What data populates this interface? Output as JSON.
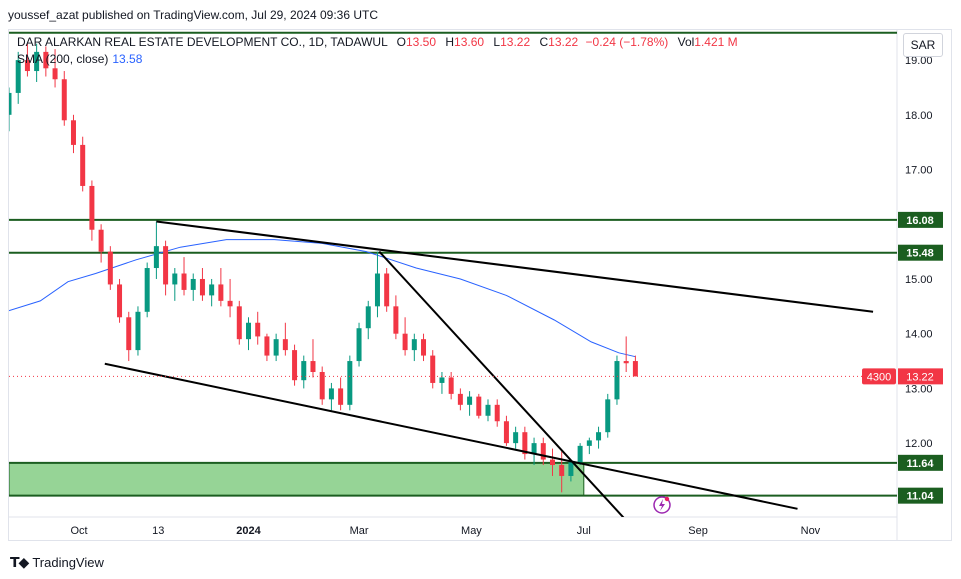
{
  "header": {
    "text": "youssef_azat published on TradingView.com, Jul 29, 2024 09:36 UTC"
  },
  "legend": {
    "symbol": "DAR ALARKAN REAL ESTATE DEVELOPMENT CO., 1D, TADAWUL",
    "o_label": "O",
    "o": "13.50",
    "h_label": "H",
    "h": "13.60",
    "l_label": "L",
    "l": "13.22",
    "c_label": "C",
    "c": "13.22",
    "change": "−0.24 (−1.78%)",
    "vol_label": "Vol",
    "vol": "1.421 M",
    "sma_label": "SMA (200, close)",
    "sma_value": "13.58"
  },
  "currency": "SAR",
  "footer": {
    "brand": "TradingView"
  },
  "colors": {
    "up": "#089981",
    "down": "#f23645",
    "sma": "#2962ff",
    "level": "#1b5e20",
    "zone": "#8bcf8b"
  },
  "chart_data": {
    "type": "candlestick",
    "y_ticks": [
      "19.00",
      "18.00",
      "17.00",
      "15.00",
      "14.00",
      "13.00",
      "12.00"
    ],
    "ylim": [
      10.65,
      19.55
    ],
    "x_ticks": [
      "Oct",
      "13",
      "2024",
      "Mar",
      "May",
      "Jul",
      "Sep",
      "Nov"
    ],
    "x_tick_dates": [
      "2023-10-01",
      "2023-11-13",
      "2024-01-01",
      "2024-03-01",
      "2024-05-01",
      "2024-07-01",
      "2024-09-01",
      "2024-11-01"
    ],
    "xlim": [
      "2023-08-24",
      "2024-12-18"
    ],
    "levels": [
      {
        "price": 16.08,
        "label": "16.08"
      },
      {
        "price": 15.48,
        "label": "15.48"
      },
      {
        "price": 11.64,
        "label": "11.64"
      },
      {
        "price": 11.04,
        "label": "11.04"
      }
    ],
    "top_level": {
      "price": 19.5,
      "label": ""
    },
    "zone": {
      "from": 11.04,
      "to": 11.64,
      "start": "2023-08-24",
      "end": "2024-07-01"
    },
    "last_price": {
      "value": 13.22,
      "label": "13.22",
      "countdown": "4300"
    },
    "sma": {
      "name": "SMA (200, close)",
      "points": [
        [
          "2023-08-24",
          14.42
        ],
        [
          "2023-09-10",
          14.6
        ],
        [
          "2023-09-25",
          14.95
        ],
        [
          "2023-10-10",
          15.1
        ],
        [
          "2023-11-01",
          15.35
        ],
        [
          "2023-11-25",
          15.58
        ],
        [
          "2023-12-20",
          15.72
        ],
        [
          "2024-01-15",
          15.72
        ],
        [
          "2024-02-10",
          15.65
        ],
        [
          "2024-03-05",
          15.5
        ],
        [
          "2024-04-01",
          15.2
        ],
        [
          "2024-04-25",
          15.0
        ],
        [
          "2024-05-20",
          14.7
        ],
        [
          "2024-06-15",
          14.25
        ],
        [
          "2024-07-05",
          13.85
        ],
        [
          "2024-07-20",
          13.65
        ],
        [
          "2024-07-29",
          13.58
        ]
      ]
    },
    "trendlines": [
      {
        "from": [
          "2023-11-12",
          16.05
        ],
        "to": [
          "2024-12-05",
          14.4
        ]
      },
      {
        "from": [
          "2023-10-15",
          13.45
        ],
        "to": [
          "2024-10-25",
          10.8
        ]
      },
      {
        "from": [
          "2024-03-12",
          15.5
        ],
        "to": [
          "2024-07-25",
          10.55
        ]
      }
    ],
    "candles": [
      [
        "2023-08-24",
        18.0,
        18.5,
        17.7,
        18.4
      ],
      [
        "2023-08-29",
        18.4,
        19.15,
        18.2,
        19.0
      ],
      [
        "2023-09-03",
        19.0,
        19.3,
        18.7,
        18.8
      ],
      [
        "2023-09-08",
        18.8,
        19.3,
        18.6,
        19.15
      ],
      [
        "2023-09-13",
        19.15,
        19.25,
        18.7,
        18.85
      ],
      [
        "2023-09-18",
        18.85,
        19.2,
        18.5,
        18.65
      ],
      [
        "2023-09-23",
        18.65,
        18.8,
        17.8,
        17.9
      ],
      [
        "2023-09-28",
        17.9,
        18.0,
        17.3,
        17.45
      ],
      [
        "2023-10-03",
        17.45,
        17.6,
        16.6,
        16.7
      ],
      [
        "2023-10-08",
        16.7,
        16.8,
        15.7,
        15.9
      ],
      [
        "2023-10-13",
        15.9,
        16.0,
        15.3,
        15.5
      ],
      [
        "2023-10-18",
        15.5,
        15.6,
        14.8,
        14.9
      ],
      [
        "2023-10-23",
        14.9,
        15.0,
        14.2,
        14.3
      ],
      [
        "2023-10-28",
        14.3,
        14.4,
        13.5,
        13.7
      ],
      [
        "2023-11-02",
        13.7,
        14.5,
        13.6,
        14.4
      ],
      [
        "2023-11-07",
        14.4,
        15.3,
        14.3,
        15.2
      ],
      [
        "2023-11-12",
        15.2,
        16.05,
        15.0,
        15.6
      ],
      [
        "2023-11-17",
        15.6,
        15.7,
        14.7,
        14.9
      ],
      [
        "2023-11-22",
        14.9,
        15.2,
        14.6,
        15.1
      ],
      [
        "2023-11-27",
        15.1,
        15.4,
        14.7,
        14.8
      ],
      [
        "2023-12-02",
        14.8,
        15.1,
        14.6,
        15.0
      ],
      [
        "2023-12-07",
        15.0,
        15.2,
        14.6,
        14.7
      ],
      [
        "2023-12-12",
        14.7,
        15.0,
        14.5,
        14.9
      ],
      [
        "2023-12-17",
        14.9,
        15.2,
        14.5,
        14.6
      ],
      [
        "2023-12-22",
        14.6,
        15.0,
        14.3,
        14.5
      ],
      [
        "2023-12-27",
        14.5,
        14.6,
        13.8,
        13.9
      ],
      [
        "2024-01-01",
        13.9,
        14.3,
        13.7,
        14.2
      ],
      [
        "2024-01-06",
        14.2,
        14.4,
        13.8,
        13.95
      ],
      [
        "2024-01-11",
        13.95,
        14.0,
        13.5,
        13.6
      ],
      [
        "2024-01-16",
        13.6,
        14.0,
        13.5,
        13.9
      ],
      [
        "2024-01-21",
        13.9,
        14.2,
        13.6,
        13.7
      ],
      [
        "2024-01-26",
        13.7,
        13.8,
        13.05,
        13.15
      ],
      [
        "2024-01-31",
        13.15,
        13.6,
        13.0,
        13.5
      ],
      [
        "2024-02-05",
        13.5,
        13.9,
        13.2,
        13.3
      ],
      [
        "2024-02-10",
        13.3,
        13.4,
        12.7,
        12.8
      ],
      [
        "2024-02-15",
        12.8,
        13.1,
        12.6,
        13.0
      ],
      [
        "2024-02-20",
        13.0,
        13.2,
        12.6,
        12.7
      ],
      [
        "2024-02-25",
        12.7,
        13.6,
        12.6,
        13.5
      ],
      [
        "2024-03-01",
        13.5,
        14.2,
        13.4,
        14.1
      ],
      [
        "2024-03-06",
        14.1,
        14.6,
        13.9,
        14.5
      ],
      [
        "2024-03-11",
        14.5,
        15.5,
        14.3,
        15.1
      ],
      [
        "2024-03-16",
        15.1,
        15.2,
        14.4,
        14.5
      ],
      [
        "2024-03-21",
        14.5,
        14.7,
        13.9,
        14.0
      ],
      [
        "2024-03-26",
        14.0,
        14.3,
        13.6,
        13.7
      ],
      [
        "2024-03-31",
        13.7,
        14.0,
        13.5,
        13.9
      ],
      [
        "2024-04-05",
        13.9,
        14.0,
        13.5,
        13.6
      ],
      [
        "2024-04-10",
        13.6,
        13.7,
        13.0,
        13.1
      ],
      [
        "2024-04-15",
        13.1,
        13.3,
        12.9,
        13.2
      ],
      [
        "2024-04-20",
        13.2,
        13.3,
        12.8,
        12.9
      ],
      [
        "2024-04-25",
        12.9,
        13.0,
        12.6,
        12.7
      ],
      [
        "2024-04-30",
        12.7,
        12.95,
        12.5,
        12.85
      ],
      [
        "2024-05-05",
        12.85,
        12.9,
        12.45,
        12.5
      ],
      [
        "2024-05-10",
        12.5,
        12.8,
        12.4,
        12.7
      ],
      [
        "2024-05-15",
        12.7,
        12.8,
        12.3,
        12.4
      ],
      [
        "2024-05-20",
        12.4,
        12.5,
        11.95,
        12.0
      ],
      [
        "2024-05-25",
        12.0,
        12.3,
        11.9,
        12.2
      ],
      [
        "2024-05-30",
        12.2,
        12.3,
        11.7,
        11.8
      ],
      [
        "2024-06-04",
        11.8,
        12.1,
        11.6,
        12.0
      ],
      [
        "2024-06-09",
        12.0,
        12.1,
        11.6,
        11.7
      ],
      [
        "2024-06-14",
        11.7,
        11.9,
        11.4,
        11.6
      ],
      [
        "2024-06-19",
        11.6,
        11.85,
        11.1,
        11.4
      ],
      [
        "2024-06-24",
        11.4,
        11.7,
        11.3,
        11.65
      ],
      [
        "2024-06-29",
        11.65,
        12.0,
        11.6,
        11.95
      ],
      [
        "2024-07-04",
        11.95,
        12.1,
        11.8,
        12.05
      ],
      [
        "2024-07-09",
        12.05,
        12.3,
        11.9,
        12.2
      ],
      [
        "2024-07-14",
        12.2,
        12.9,
        12.1,
        12.8
      ],
      [
        "2024-07-19",
        12.8,
        13.6,
        12.7,
        13.5
      ],
      [
        "2024-07-24",
        13.5,
        13.95,
        13.3,
        13.46
      ],
      [
        "2024-07-29",
        13.5,
        13.6,
        13.22,
        13.22
      ]
    ]
  }
}
